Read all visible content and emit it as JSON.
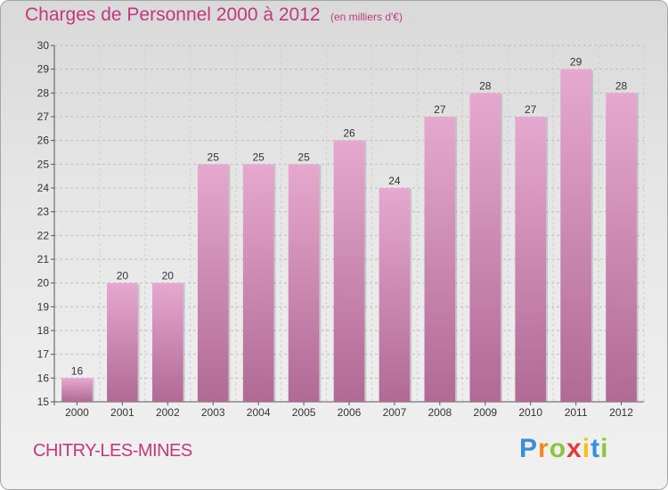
{
  "header": {
    "title": "Charges de Personnel 2000 à 2012",
    "unit": "(en milliers d'€)"
  },
  "footer": {
    "commune": "CHITRY-LES-MINES",
    "logo_text": "Proxiti",
    "logo_colors": [
      "#3a8ddc",
      "#f08a1c",
      "#8cc63f",
      "#e23c3c",
      "#f2c21b",
      "#3a8ddc",
      "#8cc63f"
    ]
  },
  "chart_data": {
    "type": "bar",
    "title": "Charges de Personnel 2000 à 2012",
    "subtitle": "(en milliers d'€)",
    "categories": [
      "2000",
      "2001",
      "2002",
      "2003",
      "2004",
      "2005",
      "2006",
      "2007",
      "2008",
      "2009",
      "2010",
      "2011",
      "2012"
    ],
    "values": [
      16,
      20,
      20,
      25,
      25,
      25,
      26,
      24,
      27,
      28,
      27,
      29,
      28
    ],
    "ylim": [
      15,
      30
    ],
    "yticks": [
      15,
      16,
      17,
      18,
      19,
      20,
      21,
      22,
      23,
      24,
      25,
      26,
      27,
      28,
      29,
      30
    ],
    "grid": true,
    "bar_color_top": "#e6a8cf",
    "bar_color_bottom": "#b06a95",
    "legend": "none"
  }
}
